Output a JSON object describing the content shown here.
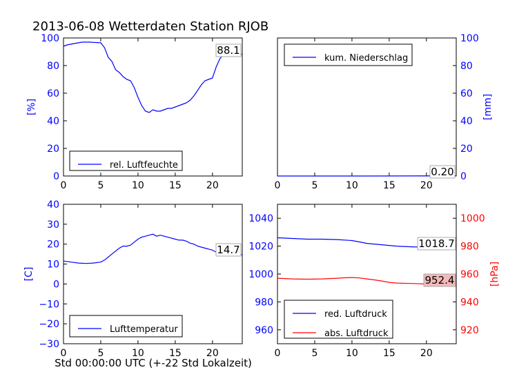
{
  "figure": {
    "title": "2013-06-08 Wetterdaten Station RJOB",
    "xlabel": "Std 00:00:00 UTC (+-22 Std Lokalzeit)"
  },
  "colors": {
    "blue": "#0000ff",
    "red": "#ff0000",
    "annotation_red_bg": "#f2b9b9",
    "black": "#000000"
  },
  "chart_data": [
    {
      "type": "line",
      "panel": "top-left",
      "ylabel": "[%]",
      "xlim": [
        0,
        24
      ],
      "ylim": [
        0,
        100
      ],
      "xticks": [
        0,
        5,
        10,
        15,
        20
      ],
      "yticks": [
        0,
        20,
        40,
        60,
        80,
        100
      ],
      "legend_placement": "lower-left",
      "series": [
        {
          "name": "rel. Luftfeuchte",
          "color": "#0000ff",
          "x": [
            0,
            0.5,
            1,
            1.5,
            2,
            2.5,
            3,
            3.5,
            4,
            4.5,
            5,
            5.5,
            6,
            6.5,
            7,
            7.5,
            8,
            8.5,
            9,
            9.5,
            10,
            10.5,
            11,
            11.5,
            12,
            12.5,
            13,
            13.5,
            14,
            14.5,
            15,
            15.5,
            16,
            16.5,
            17,
            17.5,
            18,
            18.5,
            19,
            19.5,
            20,
            20.5,
            21,
            21.5,
            22,
            22.5,
            23,
            23.5,
            24
          ],
          "y": [
            94,
            95,
            95.5,
            96,
            96.5,
            97,
            97,
            97,
            96.8,
            96.7,
            96.5,
            93,
            86,
            83,
            77,
            75,
            72,
            70,
            69,
            64,
            57,
            51,
            47,
            46,
            48,
            47,
            47,
            48,
            49,
            49,
            50,
            51,
            52,
            53,
            55,
            58,
            62,
            66,
            69,
            70,
            71,
            79,
            85,
            88,
            89,
            88.5,
            88.3,
            88.2,
            88.1
          ]
        }
      ],
      "annotation": "88.1"
    },
    {
      "type": "line",
      "panel": "top-right",
      "ylabel": "[mm]",
      "xlim": [
        0,
        24
      ],
      "ylim": [
        0,
        100
      ],
      "xticks": [
        0,
        5,
        10,
        15,
        20
      ],
      "yticks": [
        0,
        20,
        40,
        60,
        80,
        100
      ],
      "legend_placement": "upper-left",
      "series": [
        {
          "name": "kum. Niederschlag",
          "color": "#0000ff",
          "x": [
            0,
            6,
            12,
            18,
            22,
            24
          ],
          "y": [
            0,
            0,
            0,
            0.05,
            0.15,
            0.2
          ]
        }
      ],
      "annotation": "0.20"
    },
    {
      "type": "line",
      "panel": "bottom-left",
      "ylabel": "[C]",
      "xlim": [
        0,
        24
      ],
      "ylim": [
        -30,
        40
      ],
      "xticks": [
        0,
        5,
        10,
        15,
        20
      ],
      "yticks": [
        -30,
        -20,
        -10,
        0,
        10,
        20,
        30,
        40
      ],
      "legend_placement": "lower-left",
      "series": [
        {
          "name": "Lufttemperatur",
          "color": "#0000ff",
          "x": [
            0,
            1,
            2,
            3,
            4,
            5,
            5.5,
            6,
            6.5,
            7,
            7.5,
            8,
            8.5,
            9,
            9.5,
            10,
            10.5,
            11,
            11.5,
            12,
            12.5,
            13,
            13.5,
            14,
            14.5,
            15,
            15.5,
            16,
            16.5,
            17,
            17.5,
            18,
            18.5,
            19,
            19.5,
            20,
            20.5,
            21,
            22,
            23,
            24
          ],
          "y": [
            11.5,
            11,
            10.5,
            10.3,
            10.5,
            11,
            12,
            13.5,
            15,
            16.5,
            18,
            19,
            19,
            19.5,
            21,
            22.5,
            23.5,
            24,
            24.5,
            25,
            24,
            24.5,
            24,
            23.5,
            23,
            22.5,
            22,
            22,
            21.5,
            20.5,
            20,
            19,
            18.5,
            18,
            17.5,
            17,
            16,
            15.5,
            15,
            14.8,
            14.7
          ]
        }
      ],
      "annotation": "14.7"
    },
    {
      "type": "line",
      "panel": "bottom-right",
      "ylabel": "[hPa]",
      "xlim": [
        0,
        24
      ],
      "ylim_left": [
        950,
        1050
      ],
      "ylim_right": [
        910,
        1010
      ],
      "xticks": [
        0,
        5,
        10,
        15,
        20
      ],
      "yticks_left": [
        960,
        980,
        1000,
        1020,
        1040
      ],
      "yticks_right": [
        920,
        940,
        960,
        980,
        1000
      ],
      "legend_placement": "lower-left",
      "series": [
        {
          "name": "red. Luftdruck",
          "color": "#0000ff",
          "axis": "left",
          "x": [
            0,
            2,
            4,
            6,
            8,
            10,
            11,
            12,
            13,
            14,
            15,
            16,
            18,
            20,
            22,
            24
          ],
          "y": [
            1026,
            1025.5,
            1025,
            1025,
            1024.7,
            1024,
            1023,
            1022,
            1021.5,
            1021,
            1020.5,
            1020,
            1019.5,
            1019.2,
            1018.9,
            1018.7
          ]
        },
        {
          "name": "abs. Luftdruck",
          "color": "#ff0000",
          "axis": "right",
          "x": [
            0,
            2,
            4,
            6,
            8,
            9,
            10,
            11,
            12,
            13,
            14,
            15,
            16,
            18,
            20,
            22,
            24
          ],
          "y": [
            957,
            956.5,
            956.3,
            956.5,
            957,
            957.3,
            957.5,
            957.2,
            956.5,
            955.8,
            955,
            954,
            953.5,
            953.2,
            952.8,
            952.5,
            952.4
          ]
        }
      ],
      "annotations": [
        "1018.7",
        "952.4"
      ]
    }
  ]
}
